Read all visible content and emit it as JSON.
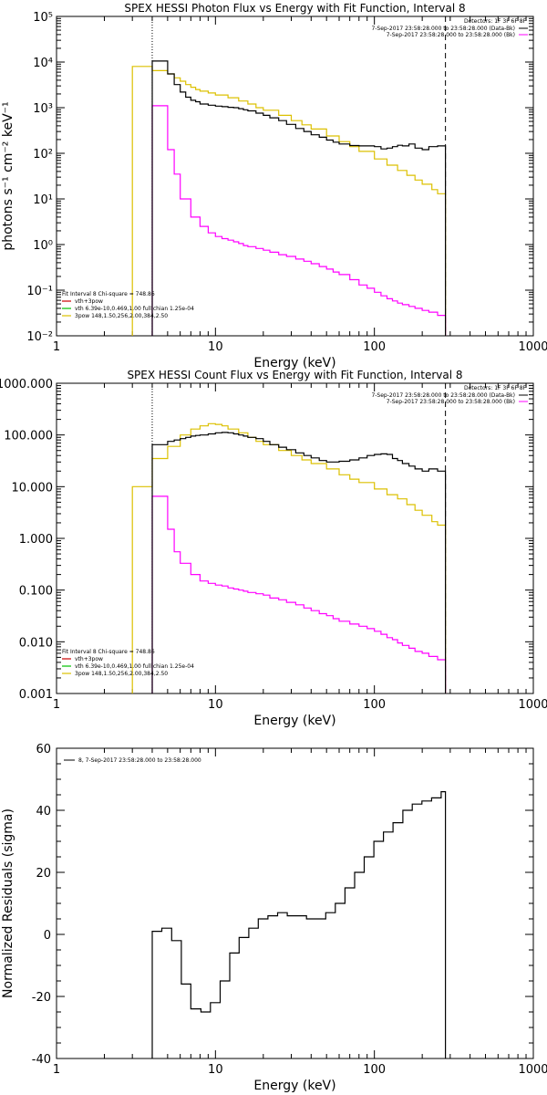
{
  "colors": {
    "data": "#000000",
    "thermal": "#ff00ff",
    "power": "#dcc000",
    "total": "#cc0000",
    "green": "#00c000",
    "background_line": "#000000"
  },
  "chart_data": [
    {
      "type": "line",
      "title": "SPEX HESSI Photon Flux vs Energy with Fit Function, Interval 8",
      "xlabel": "Energy (keV)",
      "ylabel": "photons s⁻¹ cm⁻² keV⁻¹",
      "xscale": "log",
      "yscale": "log",
      "xlim": [
        1,
        1000
      ],
      "ylim": [
        0.01,
        100000
      ],
      "xticks": [
        "1",
        "10",
        "100",
        "1000"
      ],
      "yticks": [
        "10⁻²",
        "10⁻¹",
        "10⁰",
        "10¹",
        "10²",
        "10³",
        "10⁴",
        "10⁵"
      ],
      "energy_range_markers": [
        4,
        280
      ],
      "detectors_label": "Detectors: 1F 3F 6F 8F",
      "time_labels": [
        "7-Sep-2017 23:58:28.000 to 23:58:28.000 (Data-Bk)",
        "7-Sep-2017 23:58:28.000 to 23:58:28.000 (Bk)"
      ],
      "fit_legend": [
        "Fit Interval  8    Chi-square = 748.86",
        "vth+3pow",
        "vth 6.39e-10,0.469,1.00  full chian 1.25e-04",
        "3pow 148,1.50,256,2.00,384,2.50"
      ],
      "series": [
        {
          "color_key": "data",
          "x": [
            4,
            4.5,
            5,
            5.5,
            6,
            6.5,
            7,
            7.5,
            8,
            9,
            10,
            11,
            12,
            13,
            14,
            15,
            16,
            18,
            20,
            22,
            25,
            28,
            32,
            36,
            40,
            45,
            50,
            55,
            60,
            70,
            80,
            90,
            100,
            110,
            120,
            130,
            140,
            150,
            165,
            180,
            200,
            220,
            250,
            280
          ],
          "y": [
            10500,
            10500,
            5500,
            3200,
            2200,
            1700,
            1450,
            1350,
            1200,
            1130,
            1080,
            1050,
            1020,
            1000,
            950,
            900,
            850,
            760,
            680,
            600,
            520,
            430,
            350,
            300,
            255,
            225,
            195,
            175,
            160,
            148,
            145,
            145,
            140,
            125,
            130,
            140,
            150,
            145,
            160,
            130,
            120,
            140,
            145,
            145
          ]
        },
        {
          "color_key": "thermal",
          "x": [
            4,
            5,
            5.5,
            6,
            7,
            8,
            9,
            10,
            11,
            12,
            13,
            14,
            15,
            16,
            18,
            20,
            22,
            25,
            28,
            32,
            36,
            40,
            45,
            50,
            55,
            60,
            70,
            80,
            90,
            100,
            110,
            120,
            130,
            140,
            150,
            165,
            180,
            200,
            220,
            250,
            280
          ],
          "y": [
            1100,
            120,
            35,
            10,
            4,
            2.5,
            1.8,
            1.5,
            1.35,
            1.25,
            1.15,
            1.05,
            0.95,
            0.9,
            0.82,
            0.75,
            0.68,
            0.6,
            0.55,
            0.48,
            0.43,
            0.38,
            0.33,
            0.29,
            0.25,
            0.22,
            0.17,
            0.13,
            0.11,
            0.09,
            0.075,
            0.065,
            0.058,
            0.052,
            0.048,
            0.044,
            0.04,
            0.036,
            0.033,
            0.028,
            0.025
          ]
        },
        {
          "color_key": "power",
          "x": [
            3,
            4,
            5,
            5.5,
            6,
            6.5,
            7,
            7.5,
            8,
            9,
            10,
            12,
            14,
            16,
            18,
            20,
            25,
            30,
            35,
            40,
            50,
            60,
            70,
            80,
            100,
            120,
            140,
            160,
            180,
            200,
            230,
            250,
            280
          ],
          "y": [
            8000,
            6500,
            5500,
            4500,
            3800,
            3200,
            2800,
            2500,
            2300,
            2100,
            1900,
            1650,
            1400,
            1200,
            1000,
            880,
            680,
            520,
            420,
            340,
            240,
            180,
            140,
            110,
            75,
            55,
            42,
            33,
            26,
            21,
            16,
            13,
            11
          ]
        }
      ]
    },
    {
      "type": "line",
      "title": "SPEX HESSI Count Flux vs Energy with Fit Function, Interval 8",
      "xlabel": "Energy (keV)",
      "ylabel": "",
      "xscale": "log",
      "yscale": "log",
      "xlim": [
        1,
        1000
      ],
      "ylim": [
        0.001,
        1000
      ],
      "xticks": [
        "1",
        "10",
        "100",
        "1000"
      ],
      "yticks": [
        "0.001",
        "0.010",
        "0.100",
        "1.000",
        "10.000",
        "100.000",
        "1000.000"
      ],
      "energy_range_markers": [
        4,
        280
      ],
      "detectors_label": "Detectors: 1F 3F 6F 8F",
      "time_labels": [
        "7-Sep-2017 23:58:28.000 to 23:58:28.000 (Data-Bk)",
        "7-Sep-2017 23:58:28.000 to 23:58:28.000 (Bk)"
      ],
      "fit_legend": [
        "Fit Interval  8    Chi-square = 748.86",
        "vth+3pow",
        "vth 6.39e-10,0.469,1.00  full chian 1.25e-04",
        "3pow 148,1.50,256,2.00,384,2.50"
      ],
      "series": [
        {
          "color_key": "data",
          "x": [
            4,
            5,
            5.5,
            6,
            6.5,
            7,
            7.5,
            8,
            9,
            10,
            11,
            12,
            13,
            14,
            15,
            16,
            18,
            20,
            22,
            25,
            28,
            32,
            36,
            40,
            45,
            50,
            55,
            60,
            70,
            80,
            90,
            100,
            110,
            120,
            130,
            140,
            150,
            165,
            180,
            200,
            220,
            250,
            280
          ],
          "y": [
            65,
            75,
            80,
            85,
            90,
            95,
            98,
            100,
            105,
            110,
            112,
            110,
            105,
            100,
            95,
            90,
            85,
            75,
            65,
            58,
            52,
            45,
            40,
            36,
            32,
            30,
            30,
            31,
            33,
            36,
            40,
            42,
            43,
            42,
            35,
            32,
            28,
            25,
            22,
            20,
            22,
            20,
            20
          ]
        },
        {
          "color_key": "thermal",
          "x": [
            4,
            5,
            5.5,
            6,
            7,
            8,
            9,
            10,
            11,
            12,
            13,
            14,
            15,
            16,
            18,
            20,
            22,
            25,
            28,
            32,
            36,
            40,
            45,
            50,
            55,
            60,
            70,
            80,
            90,
            100,
            110,
            120,
            130,
            140,
            150,
            165,
            180,
            200,
            220,
            250,
            280
          ],
          "y": [
            6.5,
            1.5,
            0.55,
            0.33,
            0.2,
            0.15,
            0.135,
            0.125,
            0.12,
            0.11,
            0.105,
            0.1,
            0.095,
            0.09,
            0.085,
            0.08,
            0.07,
            0.065,
            0.058,
            0.052,
            0.045,
            0.04,
            0.035,
            0.032,
            0.028,
            0.025,
            0.022,
            0.02,
            0.018,
            0.016,
            0.014,
            0.012,
            0.011,
            0.0095,
            0.0085,
            0.0075,
            0.0065,
            0.006,
            0.0052,
            0.0045,
            0.004
          ]
        },
        {
          "color_key": "power",
          "x": [
            3,
            4,
            5,
            6,
            7,
            8,
            9,
            10,
            11,
            12,
            14,
            16,
            18,
            20,
            25,
            30,
            35,
            40,
            50,
            60,
            70,
            80,
            100,
            120,
            140,
            160,
            180,
            200,
            230,
            250,
            280
          ],
          "y": [
            10,
            35,
            60,
            100,
            130,
            150,
            165,
            160,
            150,
            130,
            110,
            90,
            75,
            65,
            50,
            40,
            33,
            28,
            22,
            17,
            14,
            12,
            9,
            7,
            5.8,
            4.5,
            3.5,
            2.8,
            2.1,
            1.8,
            1.6
          ]
        }
      ]
    },
    {
      "type": "line",
      "title": "",
      "xlabel": "Energy (keV)",
      "ylabel": "Normalized Residuals (sigma)",
      "xscale": "log",
      "yscale": "linear",
      "xlim": [
        1,
        1000
      ],
      "ylim": [
        -40,
        60
      ],
      "xticks": [
        "1",
        "10",
        "100",
        "1000"
      ],
      "yticks": [
        "-40",
        "-20",
        "0",
        "20",
        "40",
        "60"
      ],
      "legend": "8,  7-Sep-2017 23:58:28.000 to 23:58:28.000",
      "series": [
        {
          "color_key": "data",
          "x": [
            4,
            4.6,
            5.3,
            6.1,
            7.0,
            8.1,
            9.3,
            10.7,
            12.3,
            14.1,
            16.2,
            18.6,
            21.4,
            24.6,
            28.3,
            32.5,
            37.4,
            43,
            49.4,
            56.8,
            65.3,
            75.1,
            86.3,
            99.2,
            114,
            131,
            151,
            173,
            199,
            229,
            263,
            280
          ],
          "y": [
            1,
            2,
            -2,
            -16,
            -24,
            -25,
            -22,
            -15,
            -6,
            -1,
            2,
            5,
            6,
            7,
            6,
            6,
            5,
            5,
            7,
            10,
            15,
            20,
            25,
            30,
            33,
            36,
            40,
            42,
            43,
            44,
            46,
            46
          ]
        }
      ]
    }
  ]
}
